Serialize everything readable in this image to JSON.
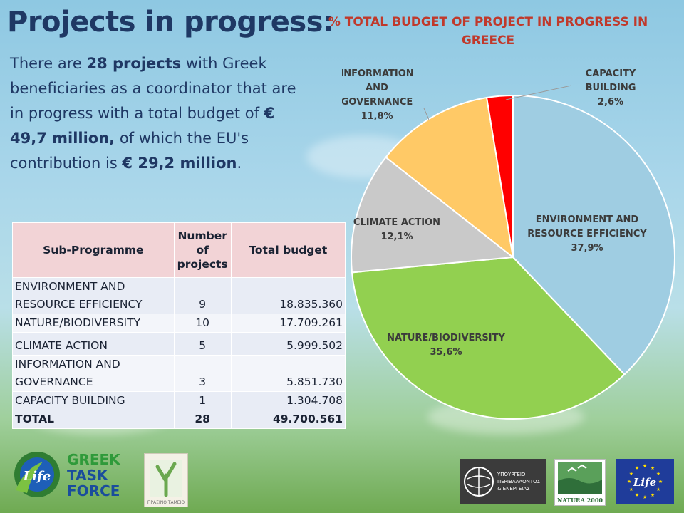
{
  "title": "Projects in progress:",
  "intro": {
    "p1": "There are ",
    "b1": "28 projects",
    "p2": " with Greek beneficiaries as a coordinator that are in progress with a total budget of ",
    "b2": "€ 49,7 million,",
    "p3": " of which the EU's contribution is ",
    "b3": "€ 29,2 million",
    "p4": "."
  },
  "table": {
    "headers": [
      "Sub-Programme",
      "Number of projects",
      "Total budget"
    ],
    "rows": [
      {
        "name": "ENVIRONMENT AND RESOURCE EFFICIENCY",
        "count": "9",
        "budget": "18.835.360"
      },
      {
        "name": "NATURE/BIODIVERSITY",
        "count": "10",
        "budget": "17.709.261"
      },
      {
        "name": "CLIMATE ACTION",
        "count": "5",
        "budget": "5.999.502"
      },
      {
        "name": "INFORMATION AND GOVERNANCE",
        "count": "3",
        "budget": "5.851.730"
      },
      {
        "name": "CAPACITY BUILDING",
        "count": "1",
        "budget": "1.304.708"
      }
    ],
    "total": {
      "name": "TOTAL",
      "count": "28",
      "budget": "49.700.561"
    }
  },
  "chart_data": {
    "type": "pie",
    "title": "%  TOTAL BUDGET OF PROJECT IN PROGRESS IN GREECE",
    "categories": [
      "ENVIRONMENT AND RESOURCE EFFICIENCY",
      "NATURE/BIODIVERSITY",
      "CLIMATE ACTION",
      "INFORMATION AND GOVERNANCE",
      "CAPACITY BUILDING"
    ],
    "values": [
      37.9,
      35.6,
      12.1,
      11.8,
      2.6
    ],
    "value_labels": [
      "37,9%",
      "35,6%",
      "12,1%",
      "11,8%",
      "2,6%"
    ],
    "label_lines": [
      [
        "ENVIRONMENT AND",
        "RESOURCE EFFICIENCY"
      ],
      [
        "NATURE/BIODIVERSITY"
      ],
      [
        "CLIMATE ACTION"
      ],
      [
        "INFORMATION",
        "AND",
        "GOVERNANCE"
      ],
      [
        "CAPACITY",
        "BUILDING"
      ]
    ],
    "colors": [
      "#9fcde2",
      "#92d050",
      "#c9c9c9",
      "#ffc966",
      "#ff0000"
    ],
    "start_angle_deg": 0,
    "direction": "clockwise"
  },
  "logos": {
    "greek_task_force": [
      "GREEK",
      "TASK",
      "FORCE"
    ],
    "life_text": "Life",
    "ministry_lines": [
      "ΥΠΟΥΡΓΕΙΟ",
      "ΠΕΡΙΒΑΛΛΟΝΤΟΣ",
      "& ΕΝΕΡΓΕΙΑΣ"
    ],
    "natura": "NATURA 2000",
    "green_fund": "ΠΡΑΣΙΝΟ ΤΑΜΕΙΟ"
  }
}
